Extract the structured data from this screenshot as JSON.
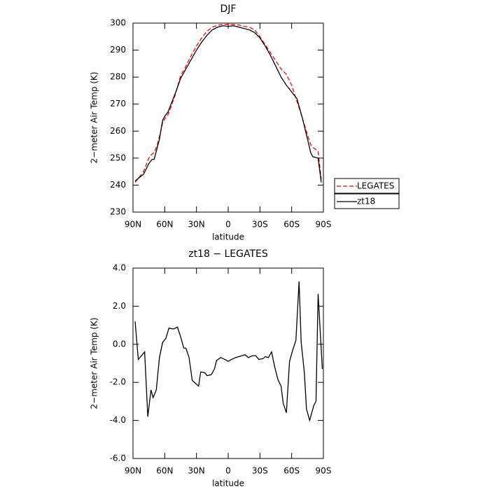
{
  "chart_data": [
    {
      "type": "line",
      "title": "DJF",
      "x_label": "latitude",
      "y_label": "2−meter Air Temp (K)",
      "xlim": [
        90,
        -90
      ],
      "ylim": [
        230,
        300
      ],
      "xticks": [
        {
          "value": 90,
          "label": "90N"
        },
        {
          "value": 60,
          "label": "60N"
        },
        {
          "value": 30,
          "label": "30N"
        },
        0,
        {
          "value": -30,
          "label": "30S"
        },
        {
          "value": -60,
          "label": "60S"
        },
        {
          "value": -90,
          "label": "90S"
        }
      ],
      "yticks": [
        230,
        240,
        250,
        260,
        270,
        280,
        290,
        300
      ],
      "legend": "outside-right",
      "x": [
        88,
        85,
        80,
        75,
        72,
        70,
        67,
        65,
        62,
        60,
        57,
        55,
        50,
        45,
        40,
        35,
        30,
        25,
        20,
        15,
        10,
        5,
        0,
        -5,
        -10,
        -15,
        -20,
        -25,
        -30,
        -35,
        -40,
        -45,
        -50,
        -55,
        -60,
        -65,
        -70,
        -75,
        -78,
        -80,
        -85,
        -88
      ],
      "series": [
        {
          "name": "LEGATES",
          "color": "#ff0000",
          "dashed": true,
          "values": [
            241,
            242.5,
            245,
            250,
            251.5,
            252,
            255,
            258,
            263,
            264.5,
            266,
            268,
            273.5,
            280.5,
            284,
            288,
            291.5,
            294.5,
            297,
            298.5,
            299.2,
            299.5,
            299.5,
            299.5,
            299.3,
            298.8,
            298.5,
            297.5,
            295,
            292,
            289,
            286,
            283,
            281,
            277,
            271,
            265,
            258.5,
            255,
            254,
            252.5,
            242
          ]
        },
        {
          "name": "zt18",
          "color": "#000000",
          "dashed": false,
          "values": [
            241.5,
            242.5,
            244,
            248,
            249.5,
            249.5,
            254,
            257,
            264,
            265.5,
            267,
            269,
            274,
            279.5,
            283,
            286.5,
            290,
            293,
            295.5,
            297.5,
            298.5,
            299,
            298.8,
            299,
            298.5,
            298,
            297.5,
            296.5,
            294.5,
            291.5,
            288,
            284,
            280,
            277,
            274.5,
            272,
            265,
            257,
            252,
            250.5,
            250,
            241
          ]
        }
      ]
    },
    {
      "type": "line",
      "title": "zt18 − LEGATES",
      "x_label": "latitude",
      "y_label": "2−meter Air Temp (K)",
      "xlim": [
        90,
        -90
      ],
      "ylim": [
        -6,
        4
      ],
      "xticks": [
        {
          "value": 90,
          "label": "90N"
        },
        {
          "value": 60,
          "label": "60N"
        },
        {
          "value": 30,
          "label": "30N"
        },
        0,
        {
          "value": -30,
          "label": "30S"
        },
        {
          "value": -60,
          "label": "60S"
        },
        {
          "value": -90,
          "label": "90S"
        }
      ],
      "yticks": [
        {
          "value": 4,
          "label": "4.0"
        },
        {
          "value": 2,
          "label": "2.0"
        },
        {
          "value": 0,
          "label": "0.0"
        },
        {
          "value": -2,
          "label": "-2.0"
        },
        {
          "value": -4,
          "label": "-4.0"
        },
        {
          "value": -6,
          "label": "-6.0"
        }
      ],
      "x": [
        88,
        85,
        79,
        76,
        73,
        71,
        68,
        65,
        62,
        59,
        56,
        52,
        48,
        45,
        42,
        40,
        37,
        34,
        30,
        28,
        26,
        22,
        20,
        16,
        13,
        11,
        7,
        3,
        0,
        -3,
        -7,
        -13,
        -16,
        -19,
        -23,
        -26,
        -29,
        -33,
        -35,
        -38,
        -41,
        -44,
        -47,
        -50,
        -52,
        -55,
        -58,
        -61,
        -64,
        -67,
        -69,
        -72,
        -74,
        -77,
        -81,
        -83,
        -85,
        -89
      ],
      "series": [
        {
          "name": "zt18",
          "color": "#000000",
          "dashed": false,
          "values": [
            1.2,
            -0.8,
            -0.4,
            -3.8,
            -2.4,
            -2.8,
            -2.4,
            -0.7,
            0.1,
            0.3,
            0.85,
            0.8,
            0.9,
            0.4,
            -0.2,
            -0.2,
            -0.7,
            -1.9,
            -2.1,
            -2.2,
            -1.45,
            -1.5,
            -1.65,
            -1.6,
            -1.3,
            -0.85,
            -0.7,
            -0.8,
            -0.9,
            -0.8,
            -0.7,
            -0.6,
            -0.55,
            -0.7,
            -0.6,
            -0.6,
            -0.8,
            -0.75,
            -0.65,
            -0.7,
            -0.4,
            -1.2,
            -1.85,
            -2.2,
            -3.1,
            -3.6,
            -0.9,
            -0.3,
            0.2,
            3.3,
            0.1,
            -1.5,
            -3.4,
            -4.0,
            -3.2,
            -3.0,
            2.65,
            -1.3
          ]
        }
      ]
    }
  ]
}
